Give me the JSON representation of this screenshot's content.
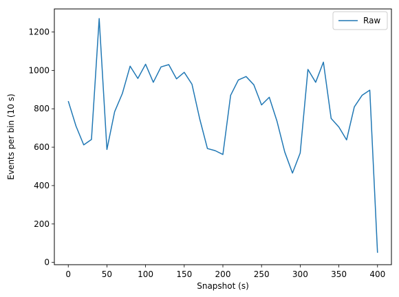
{
  "chart_data": {
    "type": "line",
    "title": "",
    "xlabel": "Snapshot (s)",
    "ylabel": "Events per bin (10 s)",
    "xlim": [
      -18,
      418
    ],
    "ylim": [
      -12,
      1320
    ],
    "xticks": [
      0,
      50,
      100,
      150,
      200,
      250,
      300,
      350,
      400
    ],
    "yticks": [
      0,
      200,
      400,
      600,
      800,
      1000,
      1200
    ],
    "grid": false,
    "legend": "top-right",
    "colors": {
      "series": "#1f77b4"
    },
    "series": [
      {
        "name": "Raw",
        "x": [
          0,
          10,
          20,
          30,
          40,
          50,
          60,
          70,
          80,
          90,
          100,
          110,
          120,
          130,
          140,
          150,
          160,
          170,
          180,
          190,
          200,
          210,
          220,
          230,
          240,
          250,
          260,
          270,
          280,
          290,
          300,
          310,
          320,
          330,
          340,
          350,
          360,
          370,
          380,
          390,
          400
        ],
        "y": [
          840,
          710,
          612,
          640,
          1270,
          588,
          785,
          880,
          1022,
          958,
          1032,
          938,
          1018,
          1030,
          956,
          990,
          928,
          748,
          593,
          582,
          562,
          870,
          950,
          968,
          925,
          820,
          860,
          735,
          575,
          465,
          570,
          1005,
          938,
          1043,
          750,
          705,
          638,
          810,
          870,
          897,
          50
        ]
      }
    ]
  }
}
